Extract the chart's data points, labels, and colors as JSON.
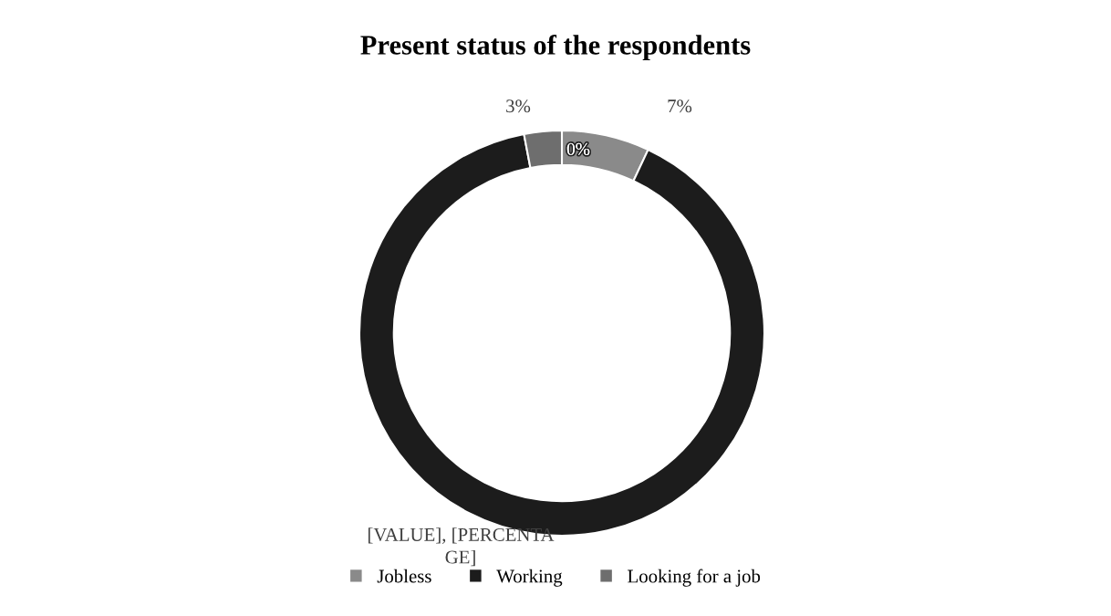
{
  "chart_data": {
    "type": "donut",
    "title": "Present status of the respondents",
    "categories": [
      "Jobless",
      "Working",
      "Looking for a job"
    ],
    "values": [
      7,
      90,
      3
    ],
    "colors": [
      "#8a8a8a",
      "#1c1c1c",
      "#6e6e6e"
    ],
    "value_labels": [
      "7%",
      "[VALUE], [PERCENTA\nGE]",
      "3%"
    ],
    "annotations": [
      "0%"
    ],
    "legend": "bottom"
  }
}
